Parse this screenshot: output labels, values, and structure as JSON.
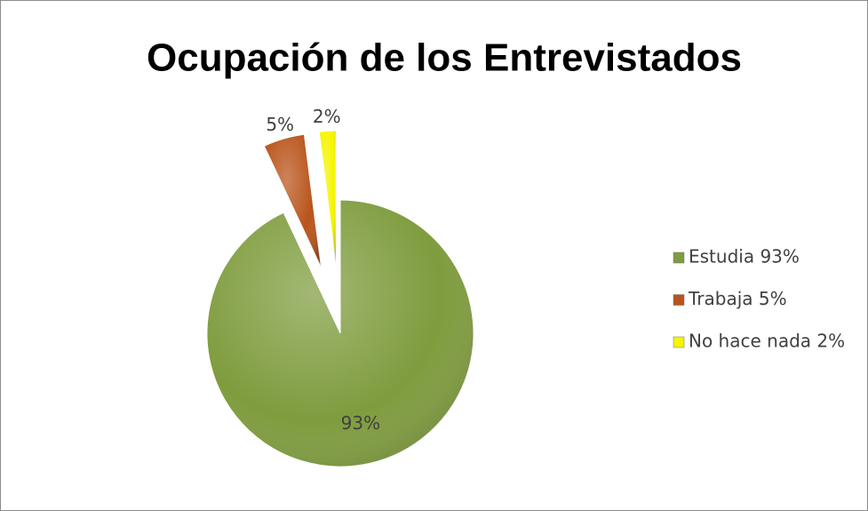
{
  "chart_data": {
    "type": "pie",
    "title": "Ocupación de los Entrevistados",
    "categories": [
      "Estudia 93%",
      "Trabaja 5%",
      "No hace nada 2%"
    ],
    "values": [
      93,
      5,
      2
    ],
    "value_labels": [
      "93%",
      "5%",
      "2%"
    ],
    "colors": [
      "#7f9c3e",
      "#b9541b",
      "#f5f500"
    ],
    "legend": "right"
  }
}
